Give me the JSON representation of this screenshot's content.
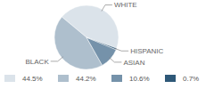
{
  "chart_data": {
    "type": "pie",
    "categories": [
      "WHITE",
      "BLACK",
      "ASIAN",
      "HISPANIC"
    ],
    "values": [
      44.5,
      44.2,
      10.6,
      0.7
    ],
    "value_labels": [
      "44.5%",
      "44.2%",
      "10.6%",
      "0.7%"
    ],
    "colors": [
      "#dbe3ea",
      "#aebfcd",
      "#7592aa",
      "#2e5878"
    ]
  }
}
